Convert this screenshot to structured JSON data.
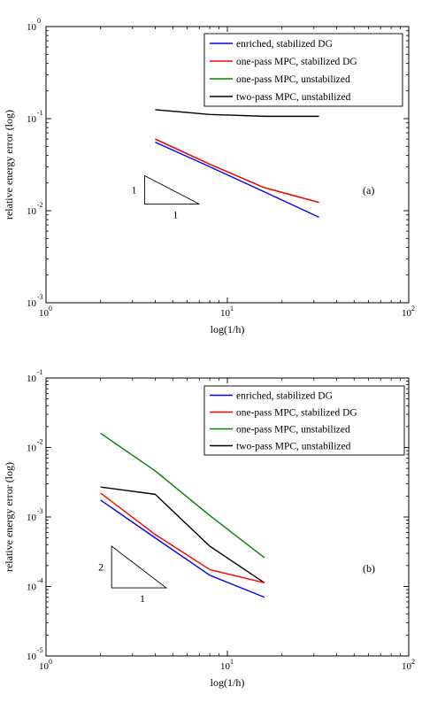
{
  "chart_data": [
    {
      "type": "line",
      "xlabel": "log(1/h)",
      "ylabel": "relative energy error (log)",
      "xscale": "log",
      "yscale": "log",
      "xlim": [
        1,
        100
      ],
      "ylim": [
        0.001,
        1
      ],
      "x_ticks": [
        {
          "base": "10",
          "exp": "0"
        },
        {
          "base": "10",
          "exp": "1"
        },
        {
          "base": "10",
          "exp": "2"
        }
      ],
      "y_ticks": [
        {
          "base": "10",
          "exp": "-3"
        },
        {
          "base": "10",
          "exp": "-2"
        },
        {
          "base": "10",
          "exp": "-1"
        },
        {
          "base": "10",
          "exp": "0"
        }
      ],
      "annotation": "(a)",
      "slope_triangle": {
        "rise_label": "1",
        "run_label": "1",
        "x": [
          3.5,
          7
        ],
        "y": [
          0.0118,
          0.024
        ]
      },
      "legend_position": "top-right",
      "series": [
        {
          "name": "enriched, stabilized DG",
          "color": "#0000ff",
          "x": [
            4,
            8,
            16,
            32
          ],
          "y": [
            0.0555,
            0.03,
            0.016,
            0.0085
          ]
        },
        {
          "name": "one-pass MPC, stabilized DG",
          "color": "#ff0000",
          "x": [
            4,
            8,
            16,
            32
          ],
          "y": [
            0.06,
            0.032,
            0.0178,
            0.0123
          ]
        },
        {
          "name": "one-pass MPC, unstabilized",
          "color": "#008000",
          "x": [
            4,
            8,
            16,
            32
          ],
          "y": [
            0.06,
            0.032,
            0.0178,
            0.0123
          ]
        },
        {
          "name": "two-pass MPC, unstabilized",
          "color": "#000000",
          "x": [
            4,
            8,
            16,
            32
          ],
          "y": [
            0.125,
            0.111,
            0.106,
            0.106
          ]
        }
      ]
    },
    {
      "type": "line",
      "xlabel": "log(1/h)",
      "ylabel": "relative energy error (log)",
      "xscale": "log",
      "yscale": "log",
      "xlim": [
        1,
        100
      ],
      "ylim": [
        1e-05,
        0.1
      ],
      "x_ticks": [
        {
          "base": "10",
          "exp": "0"
        },
        {
          "base": "10",
          "exp": "1"
        },
        {
          "base": "10",
          "exp": "2"
        }
      ],
      "y_ticks": [
        {
          "base": "10",
          "exp": "-5"
        },
        {
          "base": "10",
          "exp": "-4"
        },
        {
          "base": "10",
          "exp": "-3"
        },
        {
          "base": "10",
          "exp": "-2"
        },
        {
          "base": "10",
          "exp": "-1"
        }
      ],
      "annotation": "(b)",
      "slope_triangle": {
        "rise_label": "2",
        "run_label": "1",
        "x": [
          2.3,
          4.6
        ],
        "y": [
          9.55e-05,
          0.00038
        ]
      },
      "legend_position": "top-right",
      "series": [
        {
          "name": "enriched, stabilized DG",
          "color": "#0000ff",
          "x": [
            2,
            4,
            8,
            16
          ],
          "y": [
            0.00175,
            0.0005,
            0.000145,
            7e-05
          ]
        },
        {
          "name": "one-pass MPC, stabilized DG",
          "color": "#ff0000",
          "x": [
            2,
            4,
            8,
            16
          ],
          "y": [
            0.0022,
            0.00056,
            0.000175,
            0.000113
          ]
        },
        {
          "name": "one-pass MPC, unstabilized",
          "color": "#008000",
          "x": [
            2,
            4,
            8,
            16
          ],
          "y": [
            0.016,
            0.0046,
            0.00105,
            0.00026
          ]
        },
        {
          "name": "two-pass MPC, unstabilized",
          "color": "#000000",
          "x": [
            2,
            4,
            8,
            16
          ],
          "y": [
            0.0027,
            0.00212,
            0.00038,
            0.000113
          ]
        }
      ]
    }
  ]
}
